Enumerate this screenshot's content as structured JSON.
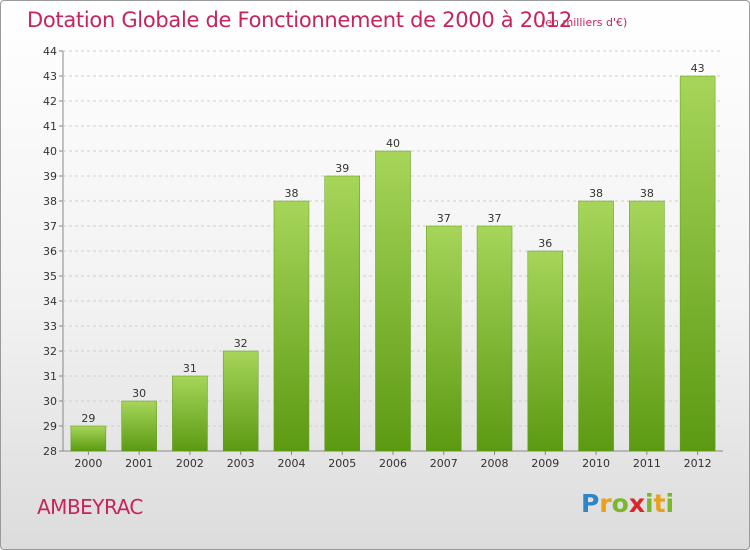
{
  "header": {
    "title": "Dotation Globale de Fonctionnement de 2000 à 2012",
    "subtitle": "(en milliers d'€)"
  },
  "footer": {
    "commune": "AMBEYRAC",
    "logo": "Proxiti"
  },
  "colors": {
    "title": "#c8235a",
    "bar_light": "#a6d55a",
    "bar_dark": "#5c9a12"
  },
  "chart_data": {
    "type": "bar",
    "title": "Dotation Globale de Fonctionnement de 2000 à 2012",
    "subtitle": "(en milliers d'€)",
    "xlabel": "",
    "ylabel": "",
    "categories": [
      "2000",
      "2001",
      "2002",
      "2003",
      "2004",
      "2005",
      "2006",
      "2007",
      "2008",
      "2009",
      "2010",
      "2011",
      "2012"
    ],
    "values": [
      29,
      30,
      31,
      32,
      38,
      39,
      40,
      37,
      37,
      36,
      38,
      38,
      43
    ],
    "data_labels": [
      "29",
      "30",
      "31",
      "32",
      "38",
      "39",
      "40",
      "37",
      "37",
      "36",
      "38",
      "38",
      "43"
    ],
    "ylim": [
      28,
      44
    ],
    "yticks": [
      "28",
      "29",
      "30",
      "31",
      "32",
      "33",
      "34",
      "35",
      "36",
      "37",
      "38",
      "39",
      "40",
      "41",
      "42",
      "43",
      "44"
    ],
    "grid": true
  }
}
